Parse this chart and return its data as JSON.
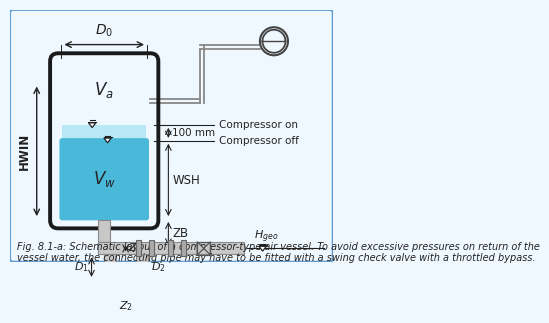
{
  "bg_color": "#f0f8ff",
  "border_color": "#5b9bd5",
  "water_color": "#4ab8d8",
  "water_light_color": "#b8e8f5",
  "tank_border_color": "#1a1a1a",
  "pipe_fill": "#c8c8c8",
  "pipe_edge": "#888888",
  "pipe_dark": "#707070",
  "label_color": "#222222",
  "caption": "Fig. 8.1-a: Schematic layout of a compressor-type air vessel. To avoid excessive pressures on return of the\nvessel water, the connecting pipe may have to be fitted with a swing check valve with a throttled bypass.",
  "caption_fontsize": 7.0
}
